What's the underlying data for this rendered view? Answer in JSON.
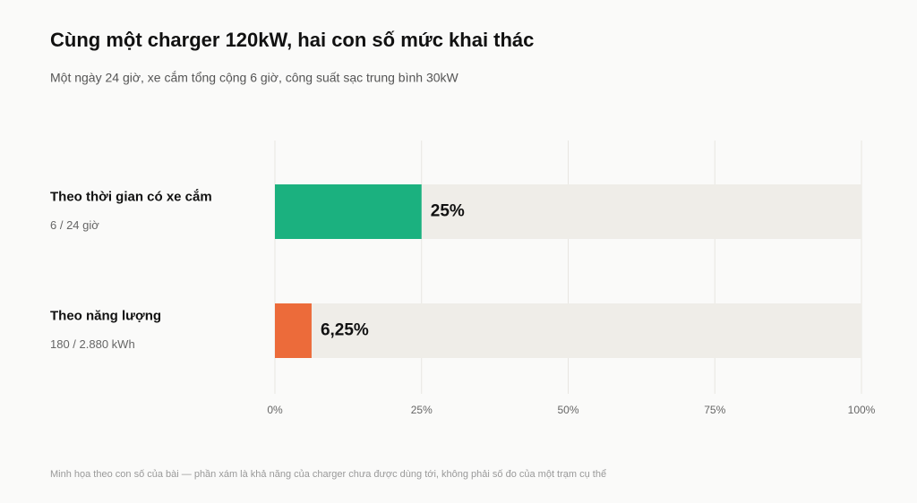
{
  "chart_data": {
    "type": "hbar",
    "title": "Cùng một charger 120kW, hai con số mức khai thác",
    "subtitle": "Một ngày 24 giờ, xe cắm tổng cộng 6 giờ, công suất sạc trung bình 30kW",
    "categories": [
      "Theo thời gian có xe cắm",
      "Theo năng lượng"
    ],
    "sublabels": [
      "6 / 24 giờ",
      "180 / 2.880 kWh"
    ],
    "values": [
      25,
      6.25
    ],
    "value_labels": [
      "25%",
      "6,25%"
    ],
    "colors": [
      "#1bb17f",
      "#ec6b3a"
    ],
    "track_color": "#efede8",
    "xlim": [
      0,
      100
    ],
    "xticks": [
      {
        "value": 0,
        "label": "0%"
      },
      {
        "value": 25,
        "label": "25%"
      },
      {
        "value": 50,
        "label": "50%"
      },
      {
        "value": 75,
        "label": "75%"
      },
      {
        "value": 100,
        "label": "100%"
      }
    ],
    "grid": true,
    "footnote": "Minh họa theo con số của bài — phần xám là khả năng của charger chưa được dùng tới, không phải số đo của một trạm cụ thể"
  }
}
